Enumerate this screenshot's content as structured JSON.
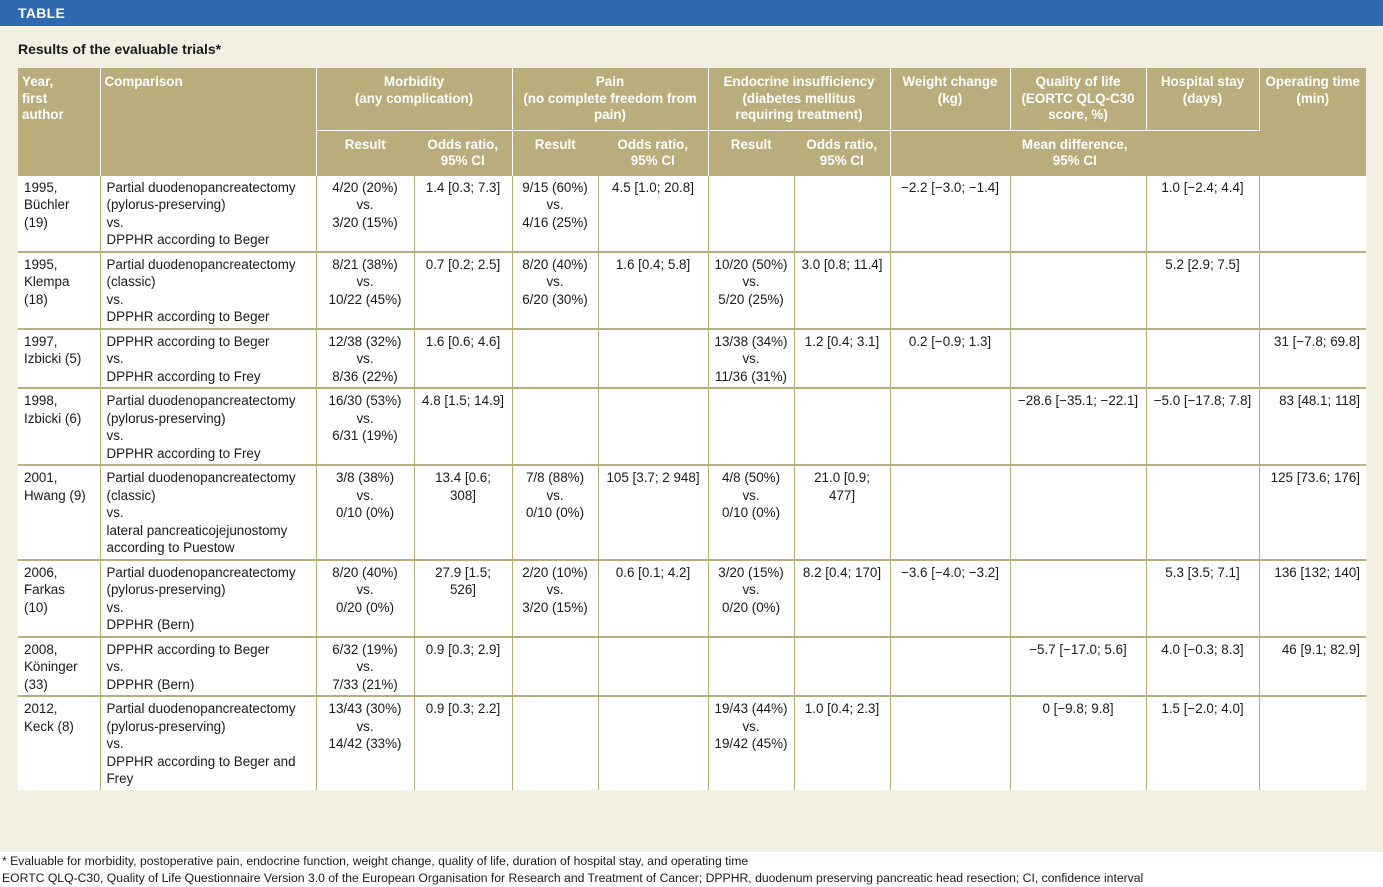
{
  "banner": {
    "label": "TABLE"
  },
  "table": {
    "title": "Results of the evaluable trials*",
    "headers": {
      "year": "Year,\nfirst\nauthor",
      "comparison": "Comparison",
      "morbidity": "Morbidity\n(any complication)",
      "pain": "Pain\n(no complete freedom from\npain)",
      "endocrine": "Endocrine insufficiency\n(diabetes mellitus\nrequiring treatment)",
      "weight": "Weight change\n(kg)",
      "qol": "Quality of life\n(EORTC QLQ-C30\nscore, %)",
      "hospital": "Hospital stay\n(days)",
      "optime": "Operating time\n(min)",
      "result": "Result",
      "odds": "Odds ratio,\n95% CI",
      "mean_diff": "Mean difference,\n95% CI"
    },
    "rows": [
      {
        "year": "1995,\nBüchler\n(19)",
        "comparison": "Partial duodenopancreatectomy\n(pylorus-preserving)\nvs.\nDPPHR according to Beger",
        "morb_result": "4/20 (20%)\nvs.\n3/20 (15%)",
        "morb_or": "1.4 [0.3; 7.3]",
        "pain_result": "9/15 (60%)\nvs.\n4/16 (25%)",
        "pain_or": "4.5 [1.0; 20.8]",
        "endo_result": "",
        "endo_or": "",
        "weight": "−2.2 [−3.0; −1.4]",
        "qol": "",
        "hospital": "1.0 [−2.4; 4.4]",
        "optime": ""
      },
      {
        "year": "1995,\nKlempa\n(18)",
        "comparison": "Partial duodenopancreatectomy\n(classic)\nvs.\nDPPHR according to Beger",
        "morb_result": "8/21 (38%)\nvs.\n10/22 (45%)",
        "morb_or": "0.7 [0.2; 2.5]",
        "pain_result": "8/20 (40%)\nvs.\n6/20 (30%)",
        "pain_or": "1.6 [0.4; 5.8]",
        "endo_result": "10/20 (50%)\nvs.\n5/20 (25%)",
        "endo_or": "3.0 [0.8; 11.4]",
        "weight": "",
        "qol": "",
        "hospital": "5.2 [2.9; 7.5]",
        "optime": ""
      },
      {
        "year": "1997,\nIzbicki (5)",
        "comparison": "DPPHR according to Beger\nvs.\nDPPHR according to Frey",
        "morb_result": "12/38 (32%)\nvs.\n8/36 (22%)",
        "morb_or": "1.6 [0.6; 4.6]",
        "pain_result": "",
        "pain_or": "",
        "endo_result": "13/38 (34%)\nvs.\n11/36 (31%)",
        "endo_or": "1.2 [0.4; 3.1]",
        "weight": "0.2 [−0.9; 1.3]",
        "qol": "",
        "hospital": "",
        "optime": "31 [−7.8; 69.8]"
      },
      {
        "year": "1998,\nIzbicki (6)",
        "comparison": "Partial duodenopancreatectomy\n(pylorus-preserving)\nvs.\nDPPHR according to Frey",
        "morb_result": "16/30 (53%)\nvs.\n6/31 (19%)",
        "morb_or": "4.8 [1.5; 14.9]",
        "pain_result": "",
        "pain_or": "",
        "endo_result": "",
        "endo_or": "",
        "weight": "",
        "qol": "−28.6 [−35.1; −22.1]",
        "hospital": "−5.0 [−17.8; 7.8]",
        "optime": "83 [48.1; 118]"
      },
      {
        "year": "2001,\nHwang (9)",
        "comparison": "Partial duodenopancreatectomy\n(classic)\nvs.\nlateral pancreaticojejunostomy\naccording to Puestow",
        "morb_result": "3/8 (38%)\nvs.\n0/10 (0%)",
        "morb_or": "13.4 [0.6; 308]",
        "pain_result": "7/8 (88%)\nvs.\n0/10 (0%)",
        "pain_or": "105 [3.7; 2 948]",
        "endo_result": "4/8 (50%)\nvs.\n0/10 (0%)",
        "endo_or": "21.0 [0.9; 477]",
        "weight": "",
        "qol": "",
        "hospital": "",
        "optime": "125 [73.6; 176]"
      },
      {
        "year": "2006,\nFarkas\n(10)",
        "comparison": "Partial duodenopancreatectomy\n(pylorus-preserving)\nvs.\nDPPHR (Bern)",
        "morb_result": "8/20 (40%)\nvs.\n0/20 (0%)",
        "morb_or": "27.9 [1.5; 526]",
        "pain_result": "2/20 (10%)\nvs.\n3/20 (15%)",
        "pain_or": "0.6 [0.1; 4.2]",
        "endo_result": "3/20 (15%)\nvs.\n0/20 (0%)",
        "endo_or": "8.2 [0.4; 170]",
        "weight": "−3.6 [−4.0; −3.2]",
        "qol": "",
        "hospital": "5.3 [3.5; 7.1]",
        "optime": "136 [132; 140]"
      },
      {
        "year": "2008,\nKöninger\n(33)",
        "comparison": "DPPHR according to Beger\nvs.\nDPPHR (Bern)",
        "morb_result": "6/32 (19%)\nvs.\n7/33 (21%)",
        "morb_or": "0.9 [0.3; 2.9]",
        "pain_result": "",
        "pain_or": "",
        "endo_result": "",
        "endo_or": "",
        "weight": "",
        "qol": "−5.7 [−17.0; 5.6]",
        "hospital": "4.0 [−0.3; 8.3]",
        "optime": "46 [9.1; 82.9]"
      },
      {
        "year": "2012,\nKeck (8)",
        "comparison": "Partial duodenopancreatectomy\n(pylorus-preserving)\nvs.\nDPPHR according to Beger and\nFrey",
        "morb_result": "13/43 (30%)\nvs.\n14/42 (33%)",
        "morb_or": "0.9 [0.3; 2.2]",
        "pain_result": "",
        "pain_or": "",
        "endo_result": "19/43 (44%)\nvs.\n19/42 (45%)",
        "endo_or": "1.0 [0.4; 2.3]",
        "weight": "",
        "qol": "0 [−9.8; 9.8]",
        "hospital": "1.5 [−2.0; 4.0]",
        "optime": ""
      }
    ]
  },
  "footnotes": {
    "line1": "* Evaluable for morbidity, postoperative pain, endocrine function, weight change, quality of life, duration of hospital stay, and operating time",
    "line2": "EORTC QLQ-C30, Quality of Life Questionnaire Version 3.0 of the European Organisation for Research and Treatment of Cancer; DPPHR, duodenum preserving pancreatic head resection; CI, confidence interval"
  }
}
